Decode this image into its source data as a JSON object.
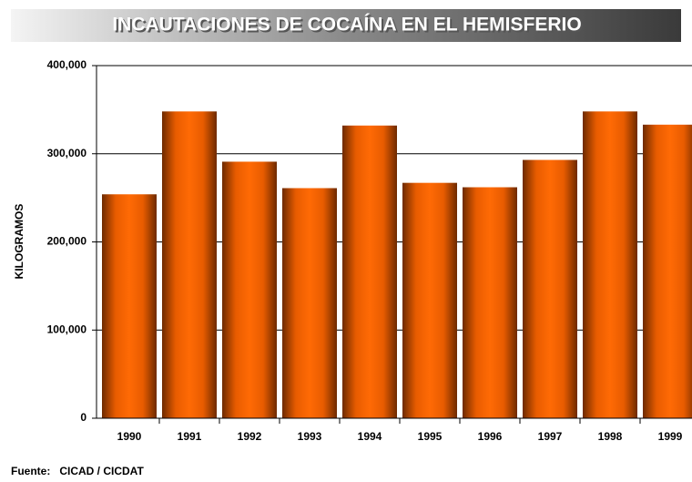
{
  "chart_data": {
    "type": "bar",
    "title": "INCAUTACIONES DE COCAÍNA EN EL HEMISFERIO",
    "y_label": "KILOGRAMOS",
    "source": "Fuente:   CICAD / CICDAT",
    "categories": [
      "1990",
      "1991",
      "1992",
      "1993",
      "1994",
      "1995",
      "1996",
      "1997",
      "1998",
      "1999"
    ],
    "values": [
      254000,
      348000,
      291000,
      261000,
      332000,
      267000,
      262000,
      293000,
      348000,
      333000
    ],
    "color": "#ff6600",
    "ylim": [
      0,
      400000
    ],
    "yticks": [
      0,
      {
        "value": 100000,
        "label": "100,000"
      },
      {
        "value": 200000,
        "label": "200,000"
      },
      {
        "value": 300000,
        "label": "300,000"
      },
      {
        "value": 400000,
        "label": "400,000"
      }
    ],
    "grid": true
  }
}
